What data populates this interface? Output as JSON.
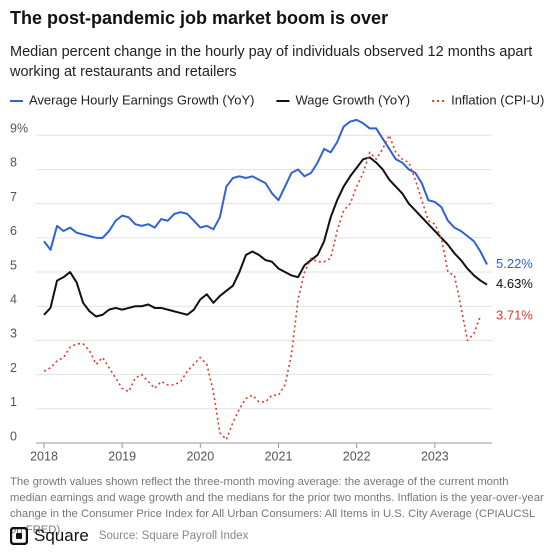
{
  "chart_data": {
    "type": "line",
    "title": "The post-pandemic job market boom is over",
    "subtitle": "Median percent change in the hourly pay of individuals observed 12 months apart working at restaurants and retailers",
    "x": [
      2018,
      2018.083,
      2018.167,
      2018.25,
      2018.333,
      2018.417,
      2018.5,
      2018.583,
      2018.667,
      2018.75,
      2018.833,
      2018.917,
      2019,
      2019.083,
      2019.167,
      2019.25,
      2019.333,
      2019.417,
      2019.5,
      2019.583,
      2019.667,
      2019.75,
      2019.833,
      2019.917,
      2020,
      2020.083,
      2020.167,
      2020.25,
      2020.333,
      2020.417,
      2020.5,
      2020.583,
      2020.667,
      2020.75,
      2020.833,
      2020.917,
      2021,
      2021.083,
      2021.167,
      2021.25,
      2021.333,
      2021.417,
      2021.5,
      2021.583,
      2021.667,
      2021.75,
      2021.833,
      2021.917,
      2022,
      2022.083,
      2022.167,
      2022.25,
      2022.333,
      2022.417,
      2022.5,
      2022.583,
      2022.667,
      2022.75,
      2022.833,
      2022.917,
      2023,
      2023.083,
      2023.167,
      2023.25,
      2023.333,
      2023.417,
      2023.5,
      2023.583,
      2023.667
    ],
    "series": [
      {
        "name": "Average Hourly Earnings Growth (YoY)",
        "color": "#2f62d6",
        "dash": "solid",
        "values": [
          5.9,
          5.65,
          6.35,
          6.2,
          6.3,
          6.15,
          6.1,
          6.05,
          6.0,
          6.0,
          6.2,
          6.5,
          6.65,
          6.6,
          6.4,
          6.35,
          6.4,
          6.3,
          6.55,
          6.5,
          6.7,
          6.75,
          6.7,
          6.5,
          6.3,
          6.35,
          6.25,
          6.6,
          7.5,
          7.75,
          7.8,
          7.75,
          7.8,
          7.7,
          7.6,
          7.3,
          7.1,
          7.5,
          7.9,
          8.0,
          7.8,
          7.9,
          8.2,
          8.6,
          8.5,
          8.8,
          9.25,
          9.4,
          9.45,
          9.35,
          9.2,
          9.2,
          8.9,
          8.6,
          8.3,
          8.2,
          8.0,
          7.9,
          7.6,
          7.1,
          7.05,
          6.9,
          6.5,
          6.3,
          6.2,
          6.05,
          5.9,
          5.6,
          5.22
        ],
        "value_labels": [
          null,
          null,
          null,
          null,
          null,
          null,
          null,
          null,
          null,
          null,
          null,
          null,
          null,
          null,
          null,
          null,
          null,
          null,
          null,
          null,
          null,
          null,
          null,
          null,
          null,
          null,
          null,
          null,
          null,
          null,
          null,
          null,
          null,
          null,
          null,
          null,
          null,
          null,
          null,
          null,
          null,
          null,
          null,
          null,
          null,
          null,
          null,
          null,
          null,
          null,
          null,
          null,
          null,
          null,
          null,
          null,
          null,
          null,
          null,
          null,
          null,
          null,
          null,
          null,
          null,
          null,
          null,
          null,
          "5.22%"
        ]
      },
      {
        "name": "Wage Growth (YoY)",
        "color": "#111111",
        "dash": "solid",
        "values": [
          3.75,
          3.95,
          4.75,
          4.85,
          5.0,
          4.7,
          4.1,
          3.85,
          3.7,
          3.75,
          3.9,
          3.95,
          3.9,
          3.95,
          4.0,
          4.0,
          4.05,
          3.95,
          3.95,
          3.9,
          3.85,
          3.8,
          3.75,
          3.9,
          4.2,
          4.35,
          4.1,
          4.3,
          4.45,
          4.6,
          5.0,
          5.5,
          5.6,
          5.5,
          5.35,
          5.3,
          5.1,
          5.0,
          4.9,
          4.85,
          5.2,
          5.35,
          5.5,
          5.9,
          6.6,
          7.1,
          7.5,
          7.8,
          8.05,
          8.3,
          8.35,
          8.2,
          8.0,
          7.7,
          7.5,
          7.3,
          7.0,
          6.8,
          6.6,
          6.4,
          6.2,
          6.0,
          5.8,
          5.55,
          5.35,
          5.1,
          4.9,
          4.75,
          4.63
        ],
        "value_labels": [
          null,
          null,
          null,
          null,
          null,
          null,
          null,
          null,
          null,
          null,
          null,
          null,
          null,
          null,
          null,
          null,
          null,
          null,
          null,
          null,
          null,
          null,
          null,
          null,
          null,
          null,
          null,
          null,
          null,
          null,
          null,
          null,
          null,
          null,
          null,
          null,
          null,
          null,
          null,
          null,
          null,
          null,
          null,
          null,
          null,
          null,
          null,
          null,
          null,
          null,
          null,
          null,
          null,
          null,
          null,
          null,
          null,
          null,
          null,
          null,
          null,
          null,
          null,
          null,
          null,
          null,
          null,
          null,
          "4.63%"
        ]
      },
      {
        "name": "Inflation (CPI-U)",
        "color": "#e3392b",
        "dash": "dotted",
        "values": [
          2.1,
          2.2,
          2.4,
          2.5,
          2.8,
          2.9,
          2.9,
          2.7,
          2.3,
          2.5,
          2.2,
          1.9,
          1.6,
          1.5,
          1.9,
          2.0,
          1.8,
          1.6,
          1.8,
          1.7,
          1.7,
          1.8,
          2.1,
          2.3,
          2.5,
          2.3,
          1.5,
          0.3,
          0.1,
          0.6,
          1.0,
          1.3,
          1.4,
          1.2,
          1.2,
          1.4,
          1.4,
          1.7,
          2.6,
          4.2,
          5.0,
          5.4,
          5.3,
          5.3,
          5.4,
          6.2,
          6.8,
          7.0,
          7.5,
          7.9,
          8.5,
          8.3,
          8.6,
          9.0,
          8.5,
          8.3,
          8.2,
          7.7,
          7.1,
          6.5,
          6.4,
          6.0,
          5.0,
          4.9,
          4.0,
          3.0,
          3.2,
          3.71,
          null
        ],
        "value_labels": [
          null,
          null,
          null,
          null,
          null,
          null,
          null,
          null,
          null,
          null,
          null,
          null,
          null,
          null,
          null,
          null,
          null,
          null,
          null,
          null,
          null,
          null,
          null,
          null,
          null,
          null,
          null,
          null,
          null,
          null,
          null,
          null,
          null,
          null,
          null,
          null,
          null,
          null,
          null,
          null,
          null,
          null,
          null,
          null,
          null,
          null,
          null,
          null,
          null,
          null,
          null,
          null,
          null,
          null,
          null,
          null,
          null,
          null,
          null,
          null,
          null,
          null,
          null,
          null,
          null,
          null,
          null,
          "3.71%",
          null
        ]
      }
    ],
    "xlim": [
      2018,
      2023.667
    ],
    "xticks": [
      2018,
      2019,
      2020,
      2021,
      2022,
      2023
    ],
    "ylim": [
      0,
      9.3
    ],
    "yticks": [
      0,
      1,
      2,
      3,
      4,
      5,
      6,
      7,
      8,
      {
        "value": 9,
        "label": "9%"
      }
    ],
    "grid": true,
    "legend": "top",
    "note": "The growth values shown reflect the three-month moving average: the average of the current month median earnings and wage growth and the medians for the prior two months. Inflation is the year-over-year change in the Consumer Price Index for All Urban Consumers: All Items in U.S. City Average (CPIAUCSL on FRED).",
    "brand": "Square",
    "source": "Source: Square Payroll Index"
  }
}
